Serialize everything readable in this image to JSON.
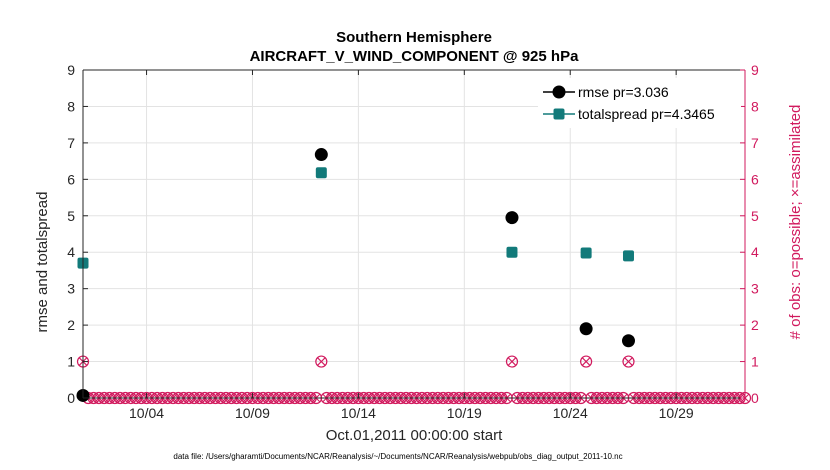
{
  "colors": {
    "rmse": "#000000",
    "spread": "#127a7a",
    "obs": "#d11a5e",
    "grid": "#e3e3e3",
    "axis": "#262626"
  },
  "chart_data": {
    "type": "scatter",
    "title_line1": "Southern Hemisphere",
    "title_line2": "AIRCRAFT_V_WIND_COMPONENT @ 925 hPa",
    "xlabel": "Oct.01,2011 00:00:00 start",
    "ylabel_left": "rmse and totalspread",
    "ylabel_right": "# of obs: o=possible; ×=assimilated",
    "footnote": "data file: /Users/gharamti/Documents/NCAR/Reanalysis/~/Documents/NCAR/Reanalysis/webpub/obs_diag_output_2011-10.nc",
    "xlim": [
      1.0,
      32.25
    ],
    "ylim_left": [
      0,
      9
    ],
    "ylim_right": [
      0,
      9
    ],
    "x_ticks": [
      {
        "x": 4,
        "label": "10/04"
      },
      {
        "x": 9,
        "label": "10/09"
      },
      {
        "x": 14,
        "label": "10/14"
      },
      {
        "x": 19,
        "label": "10/19"
      },
      {
        "x": 24,
        "label": "10/24"
      },
      {
        "x": 29,
        "label": "10/29"
      }
    ],
    "y_ticks_left": [
      "0",
      "1",
      "2",
      "3",
      "4",
      "5",
      "6",
      "7",
      "8",
      "9"
    ],
    "y_ticks_right": [
      "0",
      "1",
      "2",
      "3",
      "4",
      "5",
      "6",
      "7",
      "8",
      "9"
    ],
    "legend": [
      {
        "name": "rmse pr=3.036"
      },
      {
        "name": "totalspread pr=4.3465"
      }
    ],
    "series": [
      {
        "name": "rmse",
        "x": [
          1.0,
          12.25,
          21.25,
          24.75,
          26.75
        ],
        "values": [
          0.07,
          6.68,
          4.95,
          1.9,
          1.57
        ]
      },
      {
        "name": "totalspread",
        "x": [
          1.0,
          12.25,
          21.25,
          24.75,
          26.75
        ],
        "values": [
          3.7,
          6.18,
          4.0,
          3.98,
          3.9
        ]
      }
    ],
    "obs_possible_nonzero": {
      "x": [
        1.0,
        12.25,
        21.25,
        24.75,
        26.75
      ],
      "values": [
        1,
        1,
        1,
        1,
        1
      ]
    },
    "obs_zero_step": 0.25,
    "obs_zero_value": 0
  }
}
